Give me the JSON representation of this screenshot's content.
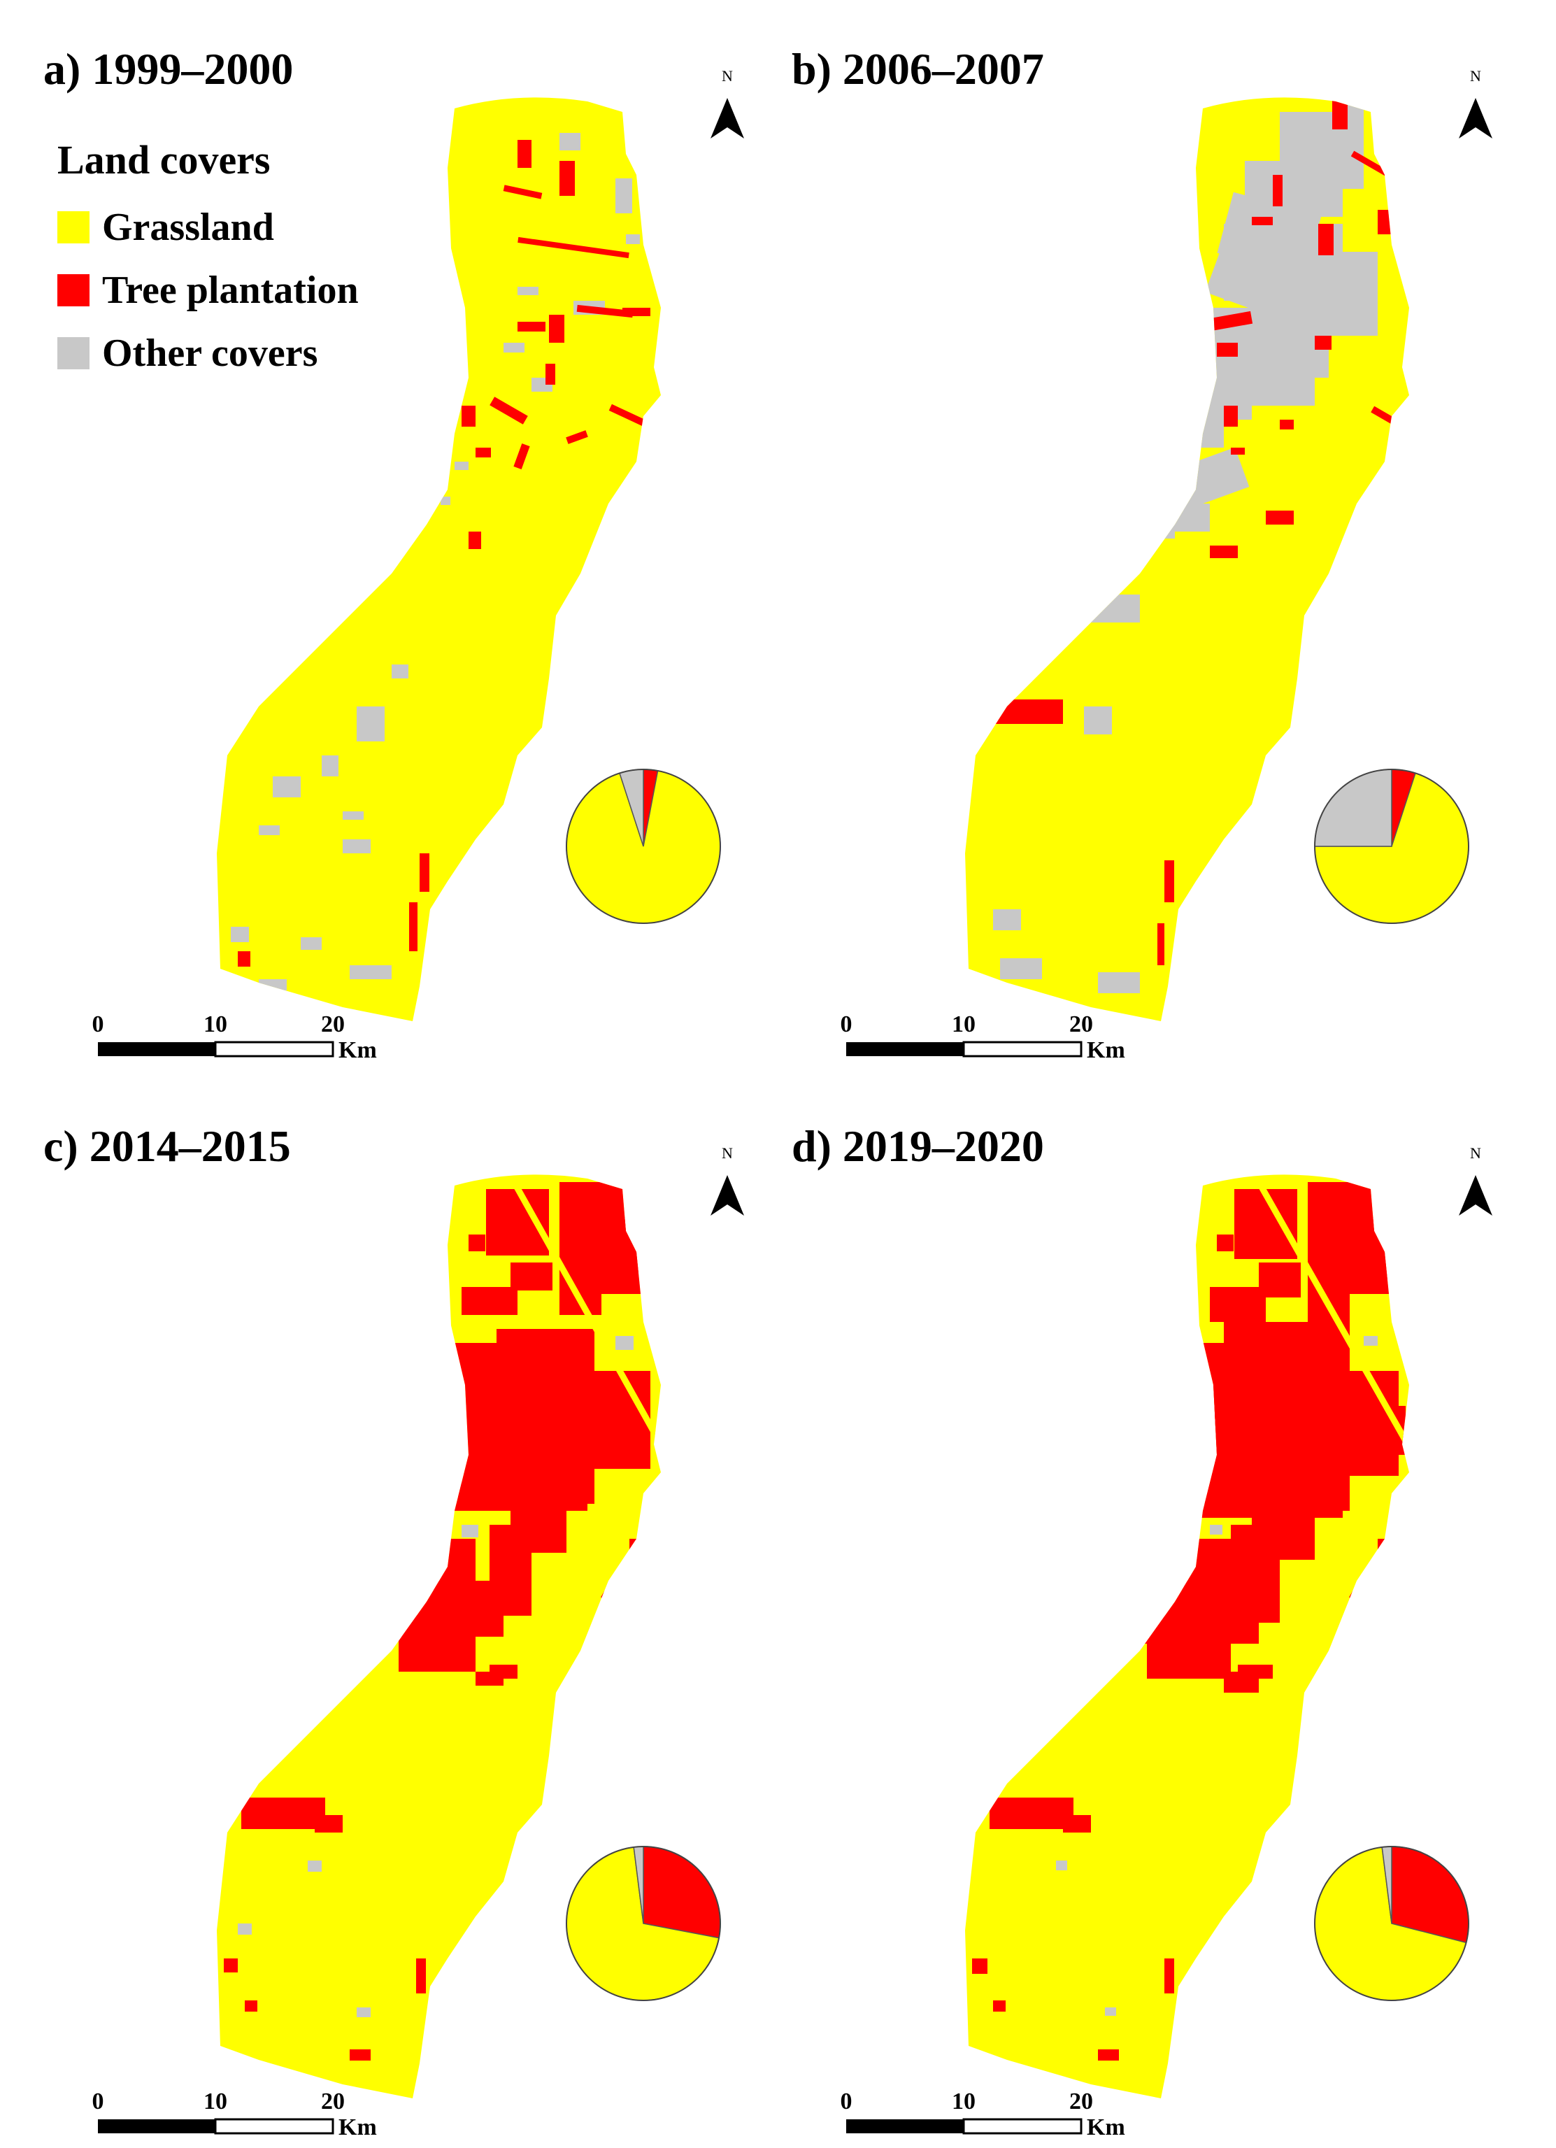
{
  "colors": {
    "grassland": "#ffff00",
    "tree": "#ff0000",
    "other": "#c8c8c8"
  },
  "legend": {
    "title": "Land covers",
    "items": [
      {
        "label": "Grassland",
        "color": "#ffff00"
      },
      {
        "label": "Tree plantation",
        "color": "#ff0000"
      },
      {
        "label": "Other covers",
        "color": "#c8c8c8"
      }
    ]
  },
  "north_label": "N",
  "scale": {
    "ticks": [
      "0",
      "10",
      "20"
    ],
    "unit": "Km"
  },
  "panels": [
    {
      "title": "a) 1999–2000",
      "pie_fractions": {
        "tree": 0.03,
        "other": 0.05,
        "grassland": 0.92
      }
    },
    {
      "title": "b) 2006–2007",
      "pie_fractions": {
        "tree": 0.05,
        "other": 0.25,
        "grassland": 0.7
      }
    },
    {
      "title": "c) 2014–2015",
      "pie_fractions": {
        "tree": 0.28,
        "other": 0.02,
        "grassland": 0.7
      }
    },
    {
      "title": "d) 2019–2020",
      "pie_fractions": {
        "tree": 0.29,
        "other": 0.02,
        "grassland": 0.69
      }
    }
  ]
}
